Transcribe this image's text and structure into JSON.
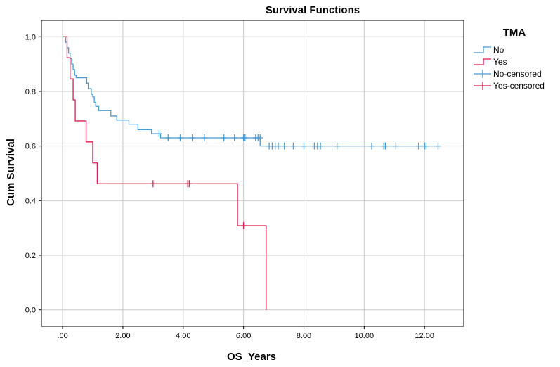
{
  "chart_data": {
    "type": "line",
    "title": "Survival Functions",
    "xlabel": "OS_Years",
    "ylabel": "Cum Survival",
    "xlim": [
      -0.7,
      13.3
    ],
    "ylim": [
      -0.06,
      1.06
    ],
    "xticks": [
      {
        "value": 0,
        "label": ".00"
      },
      {
        "value": 2,
        "label": "2.00"
      },
      {
        "value": 4,
        "label": "4.00"
      },
      {
        "value": 6,
        "label": "6.00"
      },
      {
        "value": 8,
        "label": "8.00"
      },
      {
        "value": 10,
        "label": "10.00"
      },
      {
        "value": 12,
        "label": "12.00"
      }
    ],
    "yticks": [
      {
        "value": 0,
        "label": "0.0"
      },
      {
        "value": 0.2,
        "label": "0.2"
      },
      {
        "value": 0.4,
        "label": "0.4"
      },
      {
        "value": 0.6,
        "label": "0.6"
      },
      {
        "value": 0.8,
        "label": "0.8"
      },
      {
        "value": 1.0,
        "label": "1.0"
      }
    ],
    "grid": true,
    "legend": {
      "title": "TMA",
      "position": "right",
      "entries": [
        "No",
        "Yes",
        "No-censored",
        "Yes-censored"
      ]
    },
    "series": [
      {
        "name": "No",
        "color": "#4a9ad4",
        "step_points": [
          [
            0,
            1.0
          ],
          [
            0.1,
            0.98
          ],
          [
            0.15,
            0.96
          ],
          [
            0.2,
            0.94
          ],
          [
            0.25,
            0.92
          ],
          [
            0.3,
            0.9
          ],
          [
            0.35,
            0.88
          ],
          [
            0.4,
            0.86
          ],
          [
            0.45,
            0.85
          ],
          [
            0.8,
            0.83
          ],
          [
            0.85,
            0.81
          ],
          [
            0.95,
            0.79
          ],
          [
            1.0,
            0.78
          ],
          [
            1.05,
            0.76
          ],
          [
            1.1,
            0.745
          ],
          [
            1.2,
            0.73
          ],
          [
            1.6,
            0.71
          ],
          [
            1.8,
            0.695
          ],
          [
            2.2,
            0.68
          ],
          [
            2.5,
            0.66
          ],
          [
            2.95,
            0.645
          ],
          [
            3.25,
            0.63
          ],
          [
            6.55,
            0.6
          ]
        ],
        "end_x": 12.5
      },
      {
        "name": "Yes",
        "color": "#d81f4d",
        "step_points": [
          [
            0,
            1.0
          ],
          [
            0.15,
            0.923
          ],
          [
            0.25,
            0.846
          ],
          [
            0.35,
            0.769
          ],
          [
            0.42,
            0.692
          ],
          [
            0.78,
            0.615
          ],
          [
            1.0,
            0.538
          ],
          [
            1.15,
            0.462
          ],
          [
            5.8,
            0.308
          ],
          [
            6.75,
            0.0
          ]
        ],
        "end_x": 6.75
      }
    ],
    "censored": [
      {
        "name": "No-censored",
        "color": "#4a9ad4",
        "points": [
          [
            3.2,
            0.645
          ],
          [
            3.5,
            0.63
          ],
          [
            3.9,
            0.63
          ],
          [
            4.3,
            0.63
          ],
          [
            4.7,
            0.63
          ],
          [
            5.35,
            0.63
          ],
          [
            5.7,
            0.63
          ],
          [
            6.0,
            0.63
          ],
          [
            6.03,
            0.63
          ],
          [
            6.05,
            0.63
          ],
          [
            6.4,
            0.63
          ],
          [
            6.48,
            0.63
          ],
          [
            6.55,
            0.63
          ],
          [
            6.85,
            0.6
          ],
          [
            6.95,
            0.6
          ],
          [
            7.05,
            0.6
          ],
          [
            7.15,
            0.6
          ],
          [
            7.35,
            0.6
          ],
          [
            7.65,
            0.6
          ],
          [
            8.0,
            0.6
          ],
          [
            8.35,
            0.6
          ],
          [
            8.45,
            0.6
          ],
          [
            8.55,
            0.6
          ],
          [
            9.1,
            0.6
          ],
          [
            10.25,
            0.6
          ],
          [
            10.65,
            0.6
          ],
          [
            10.7,
            0.6
          ],
          [
            11.05,
            0.6
          ],
          [
            11.8,
            0.6
          ],
          [
            12.0,
            0.6
          ],
          [
            12.05,
            0.6
          ],
          [
            12.45,
            0.6
          ]
        ]
      },
      {
        "name": "Yes-censored",
        "color": "#d81f4d",
        "points": [
          [
            3.0,
            0.462
          ],
          [
            4.15,
            0.462
          ],
          [
            4.2,
            0.462
          ],
          [
            6.0,
            0.308
          ]
        ]
      }
    ]
  }
}
